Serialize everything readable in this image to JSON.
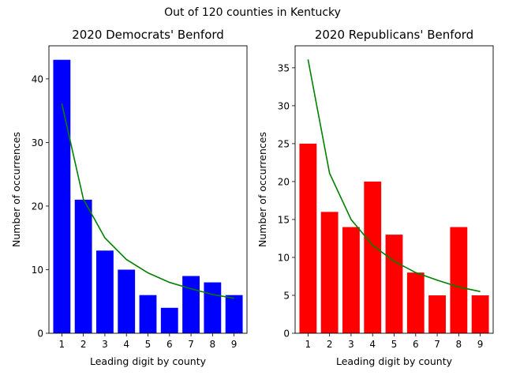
{
  "figure": {
    "suptitle": "Out of 120 counties in Kentucky"
  },
  "chart_data": [
    {
      "type": "bar",
      "title": "2020 Democrats' Benford",
      "xlabel": "Leading digit by county",
      "ylabel": "Number of occurrences",
      "categories": [
        "1",
        "2",
        "3",
        "4",
        "5",
        "6",
        "7",
        "8",
        "9"
      ],
      "series": [
        {
          "kind": "bar",
          "values": [
            43,
            21,
            13,
            10,
            6,
            4,
            9,
            8,
            6
          ],
          "color": "#0000ff"
        },
        {
          "kind": "line",
          "values": [
            36.1,
            21.1,
            15.0,
            11.6,
            9.5,
            8.0,
            7.0,
            6.1,
            5.5
          ],
          "color": "#008000"
        }
      ],
      "ylim": [
        0,
        45.2
      ],
      "yticks": [
        0,
        10,
        20,
        30,
        40
      ],
      "grid": false,
      "legend": null
    },
    {
      "type": "bar",
      "title": "2020 Republicans' Benford",
      "xlabel": "Leading digit by county",
      "ylabel": "Number of occurrences",
      "categories": [
        "1",
        "2",
        "3",
        "4",
        "5",
        "6",
        "7",
        "8",
        "9"
      ],
      "series": [
        {
          "kind": "bar",
          "values": [
            25,
            16,
            14,
            20,
            13,
            8,
            5,
            14,
            5
          ],
          "color": "#ff0000"
        },
        {
          "kind": "line",
          "values": [
            36.1,
            21.1,
            15.0,
            11.6,
            9.5,
            8.0,
            7.0,
            6.1,
            5.5
          ],
          "color": "#008000"
        }
      ],
      "ylim": [
        0,
        37.9
      ],
      "yticks": [
        0,
        5,
        10,
        15,
        20,
        25,
        30,
        35
      ],
      "grid": false,
      "legend": null
    }
  ]
}
